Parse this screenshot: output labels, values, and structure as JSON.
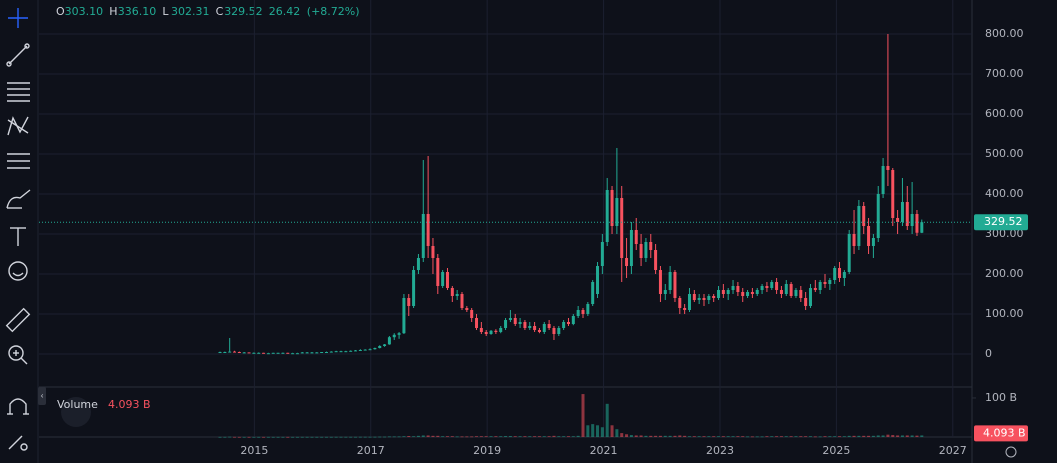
{
  "chart_data": {
    "type": "candlestick",
    "legend": {
      "labels": [
        "O",
        "H",
        "L",
        "C"
      ],
      "values": [
        {
          "value": 303.1,
          "label": "303.10"
        },
        {
          "value": 336.1,
          "label": "336.10"
        },
        {
          "value": 302.31,
          "label": "302.31"
        },
        {
          "value": 329.52,
          "label": "329.52"
        }
      ],
      "change": 26.42,
      "change_pct": {
        "value": 8.72,
        "label": "(+8.72%)"
      }
    },
    "ylim": [
      -82.5,
      885
    ],
    "yticks": [
      0,
      {
        "value": 100,
        "label": "100.00"
      },
      {
        "value": 200,
        "label": "200.00"
      },
      {
        "value": 300,
        "label": "300.00"
      },
      {
        "value": 400,
        "label": "400.00"
      },
      {
        "value": 500,
        "label": "500.00"
      },
      {
        "value": 600,
        "label": "600.00"
      },
      {
        "value": 700,
        "label": "700.00"
      },
      {
        "value": 800,
        "label": "800.00"
      }
    ],
    "xlim": [
      2011.3,
      2027.33
    ],
    "xticks": [
      2015,
      2017,
      2019,
      2021,
      2023,
      2025,
      2027
    ],
    "up_color": "#22ab94",
    "down_color": "#f7525f",
    "candles": [
      [
        5,
        6,
        4,
        5
      ],
      [
        5,
        6,
        4,
        5
      ],
      [
        5,
        40,
        4,
        6
      ],
      [
        6,
        8,
        4,
        5
      ],
      [
        5,
        6,
        3,
        4
      ],
      [
        4,
        5,
        3,
        4
      ],
      [
        4,
        4,
        3,
        3
      ],
      [
        3,
        4,
        2,
        3
      ],
      [
        3,
        4,
        2,
        3
      ],
      [
        3,
        3,
        2,
        2
      ],
      [
        2,
        3,
        2,
        2
      ],
      [
        2,
        3,
        2,
        3
      ],
      [
        3,
        3,
        2,
        3
      ],
      [
        3,
        4,
        3,
        3
      ],
      [
        3,
        3,
        2,
        2
      ],
      [
        2,
        3,
        2,
        2
      ],
      [
        2,
        3,
        2,
        2
      ],
      [
        2,
        5,
        2,
        4
      ],
      [
        4,
        5,
        3,
        4
      ],
      [
        4,
        5,
        3,
        4
      ],
      [
        4,
        5,
        4,
        4
      ],
      [
        4,
        5,
        4,
        5
      ],
      [
        5,
        6,
        4,
        5
      ],
      [
        5,
        7,
        5,
        6
      ],
      [
        6,
        8,
        5,
        7
      ],
      [
        7,
        8,
        6,
        7
      ],
      [
        7,
        8,
        6,
        7
      ],
      [
        7,
        9,
        6,
        8
      ],
      [
        8,
        10,
        7,
        9
      ],
      [
        9,
        12,
        8,
        10
      ],
      [
        10,
        12,
        9,
        11
      ],
      [
        11,
        14,
        10,
        12
      ],
      [
        12,
        16,
        11,
        15
      ],
      [
        15,
        22,
        14,
        20
      ],
      [
        20,
        25,
        18,
        24
      ],
      [
        24,
        45,
        23,
        42
      ],
      [
        42,
        52,
        35,
        48
      ],
      [
        48,
        55,
        38,
        52
      ],
      [
        52,
        150,
        50,
        140
      ],
      [
        140,
        150,
        95,
        120
      ],
      [
        120,
        220,
        115,
        210
      ],
      [
        210,
        250,
        200,
        240
      ],
      [
        240,
        485,
        230,
        350
      ],
      [
        350,
        495,
        240,
        270
      ],
      [
        270,
        290,
        200,
        240
      ],
      [
        240,
        250,
        150,
        170
      ],
      [
        170,
        210,
        165,
        205
      ],
      [
        205,
        215,
        160,
        165
      ],
      [
        165,
        170,
        130,
        145
      ],
      [
        145,
        160,
        135,
        150
      ],
      [
        150,
        155,
        110,
        115
      ],
      [
        115,
        120,
        105,
        110
      ],
      [
        110,
        115,
        80,
        90
      ],
      [
        90,
        100,
        60,
        65
      ],
      [
        65,
        80,
        50,
        55
      ],
      [
        55,
        60,
        45,
        50
      ],
      [
        50,
        60,
        48,
        58
      ],
      [
        58,
        62,
        50,
        55
      ],
      [
        55,
        70,
        52,
        65
      ],
      [
        65,
        90,
        60,
        85
      ],
      [
        85,
        110,
        80,
        90
      ],
      [
        90,
        100,
        70,
        75
      ],
      [
        75,
        90,
        65,
        80
      ],
      [
        80,
        85,
        60,
        65
      ],
      [
        65,
        80,
        60,
        70
      ],
      [
        70,
        80,
        55,
        60
      ],
      [
        60,
        65,
        52,
        55
      ],
      [
        55,
        80,
        50,
        75
      ],
      [
        75,
        85,
        60,
        65
      ],
      [
        65,
        70,
        35,
        50
      ],
      [
        50,
        70,
        45,
        65
      ],
      [
        65,
        85,
        60,
        80
      ],
      [
        80,
        90,
        70,
        75
      ],
      [
        75,
        100,
        72,
        95
      ],
      [
        95,
        120,
        90,
        110
      ],
      [
        110,
        115,
        90,
        100
      ],
      [
        100,
        130,
        95,
        125
      ],
      [
        125,
        185,
        120,
        180
      ],
      [
        150,
        230,
        140,
        220
      ],
      [
        220,
        300,
        200,
        280
      ],
      [
        280,
        440,
        270,
        410
      ],
      [
        410,
        420,
        300,
        320
      ],
      [
        320,
        515,
        300,
        390
      ],
      [
        390,
        420,
        180,
        240
      ],
      [
        240,
        290,
        190,
        220
      ],
      [
        220,
        330,
        200,
        310
      ],
      [
        310,
        340,
        260,
        275
      ],
      [
        275,
        300,
        220,
        240
      ],
      [
        240,
        290,
        230,
        280
      ],
      [
        280,
        300,
        240,
        260
      ],
      [
        260,
        275,
        200,
        210
      ],
      [
        210,
        220,
        130,
        150
      ],
      [
        150,
        175,
        135,
        160
      ],
      [
        160,
        220,
        150,
        205
      ],
      [
        205,
        210,
        130,
        140
      ],
      [
        140,
        145,
        100,
        115
      ],
      [
        115,
        125,
        100,
        110
      ],
      [
        110,
        165,
        105,
        150
      ],
      [
        150,
        160,
        130,
        135
      ],
      [
        135,
        150,
        125,
        140
      ],
      [
        140,
        150,
        120,
        135
      ],
      [
        135,
        150,
        125,
        145
      ],
      [
        145,
        150,
        130,
        140
      ],
      [
        140,
        170,
        135,
        160
      ],
      [
        160,
        175,
        140,
        150
      ],
      [
        150,
        165,
        135,
        160
      ],
      [
        160,
        185,
        150,
        170
      ],
      [
        170,
        180,
        145,
        155
      ],
      [
        155,
        165,
        130,
        145
      ],
      [
        145,
        160,
        140,
        155
      ],
      [
        155,
        165,
        140,
        150
      ],
      [
        150,
        165,
        145,
        160
      ],
      [
        160,
        175,
        150,
        170
      ],
      [
        170,
        180,
        155,
        165
      ],
      [
        165,
        185,
        160,
        180
      ],
      [
        180,
        190,
        150,
        160
      ],
      [
        160,
        170,
        140,
        150
      ],
      [
        150,
        185,
        145,
        175
      ],
      [
        175,
        180,
        140,
        145
      ],
      [
        145,
        165,
        140,
        160
      ],
      [
        160,
        170,
        130,
        140
      ],
      [
        140,
        155,
        110,
        120
      ],
      [
        120,
        175,
        115,
        165
      ],
      [
        165,
        185,
        155,
        160
      ],
      [
        160,
        185,
        150,
        180
      ],
      [
        180,
        200,
        165,
        175
      ],
      [
        175,
        190,
        160,
        185
      ],
      [
        185,
        220,
        175,
        215
      ],
      [
        215,
        230,
        180,
        190
      ],
      [
        190,
        210,
        170,
        205
      ],
      [
        205,
        310,
        200,
        300
      ],
      [
        300,
        360,
        250,
        270
      ],
      [
        270,
        385,
        260,
        370
      ],
      [
        370,
        380,
        300,
        320
      ],
      [
        320,
        340,
        250,
        270
      ],
      [
        270,
        300,
        240,
        290
      ],
      [
        290,
        420,
        280,
        400
      ],
      [
        400,
        490,
        390,
        470
      ],
      [
        470,
        800,
        420,
        460
      ],
      [
        460,
        465,
        320,
        340
      ],
      [
        340,
        360,
        300,
        330
      ],
      [
        330,
        440,
        320,
        380
      ],
      [
        380,
        420,
        310,
        320
      ],
      [
        320,
        430,
        300,
        350
      ],
      [
        350,
        360,
        295,
        303.1
      ],
      [
        303.1,
        336.1,
        302.31,
        329.52
      ]
    ],
    "volume_title": "Volume",
    "volume_last": {
      "value": 4.093,
      "label": "4.093 B"
    },
    "vlim": [
      0,
      123
    ],
    "vticks": [
      {
        "value": 100,
        "label": "100 B"
      }
    ],
    "volume": [
      0.3,
      0.4,
      0.8,
      0.4,
      0.3,
      0.3,
      0.3,
      0.3,
      0.3,
      0.3,
      0.3,
      0.3,
      0.3,
      0.3,
      0.3,
      0.3,
      0.3,
      0.4,
      0.4,
      0.4,
      0.4,
      0.4,
      0.4,
      0.4,
      0.5,
      0.5,
      0.5,
      0.5,
      0.5,
      0.6,
      0.6,
      0.6,
      0.7,
      1,
      1,
      1.5,
      1.5,
      1.5,
      2,
      2.5,
      2,
      3,
      4,
      4,
      3,
      3,
      2,
      2,
      2,
      1.5,
      1.5,
      1.5,
      1.5,
      2,
      2,
      2,
      2,
      2,
      2,
      2.5,
      2.5,
      2,
      2,
      2,
      2,
      2,
      2,
      2,
      2,
      3,
      2,
      2,
      2,
      2,
      3,
      110,
      30,
      33,
      30,
      25,
      85,
      30,
      20,
      10,
      7,
      5,
      4,
      4,
      3,
      3,
      3,
      3,
      3,
      3,
      3,
      4,
      3,
      2,
      2,
      2,
      2,
      2,
      2,
      2,
      2,
      2,
      2,
      2,
      2,
      1.5,
      1.5,
      1.5,
      1.5,
      2,
      2,
      2,
      2,
      2,
      2,
      2,
      2,
      2,
      2,
      1.5,
      1.5,
      2,
      2,
      2,
      2,
      2,
      3,
      3,
      3,
      3,
      3,
      3,
      4,
      4,
      6,
      5,
      4,
      4,
      4,
      4,
      3.5,
      4.093
    ]
  }
}
